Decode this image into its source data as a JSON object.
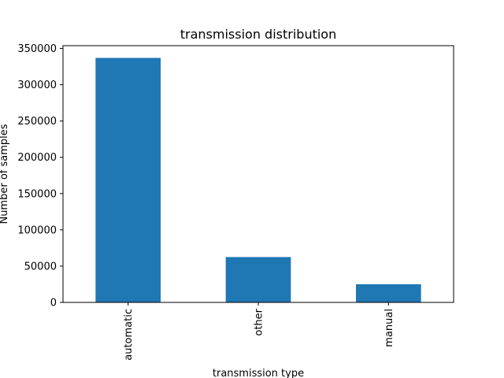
{
  "chart_data": {
    "type": "bar",
    "title": "transmission distribution",
    "xlabel": "transmission type",
    "ylabel": "Number of samples",
    "categories": [
      "automatic",
      "other",
      "manual"
    ],
    "values": [
      337000,
      62500,
      25000
    ],
    "ylim": [
      0,
      353850
    ],
    "yticks": [
      0,
      50000,
      100000,
      150000,
      200000,
      250000,
      300000,
      350000
    ],
    "grid": false,
    "legend": "none",
    "bar_color": "#1f77b4"
  }
}
